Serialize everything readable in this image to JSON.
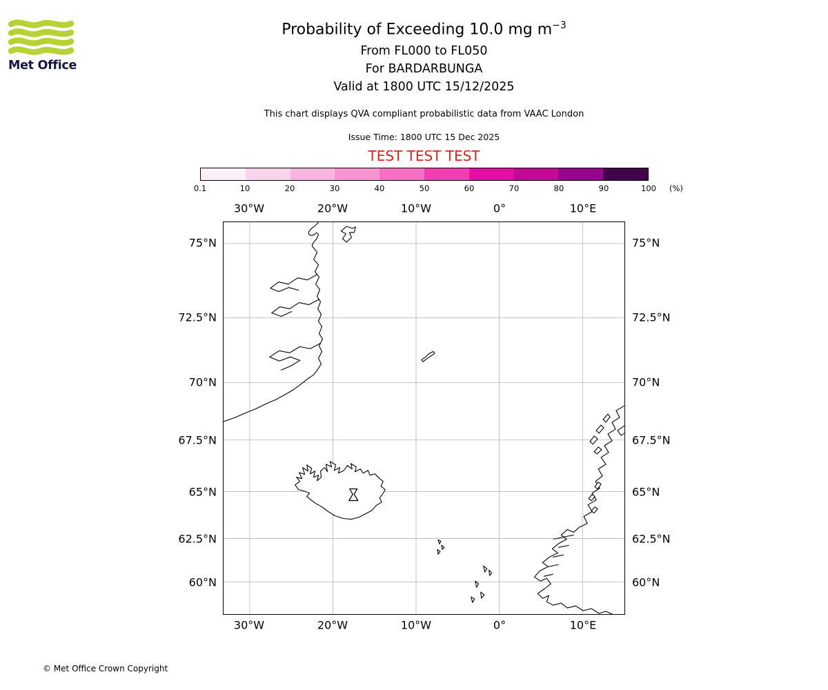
{
  "logo": {
    "brand": "Met Office",
    "green": "#b5d334",
    "text_color": "#151542"
  },
  "header": {
    "title_main": "Probability of Exceeding 10.0 mg m",
    "title_sup": "−3",
    "subtitle1": "From FL000 to FL050",
    "subtitle2": "For BARDARBUNGA",
    "subtitle3": "Valid at 1800 UTC 15/12/2025",
    "disclaimer": "This chart displays QVA compliant probabilistic data from VAAC London",
    "issue_time": "Issue Time: 1800 UTC 15 Dec 2025",
    "test_banner": "TEST TEST TEST",
    "test_color": "#d8231f"
  },
  "colorbar": {
    "unit": "(%)",
    "ticks": [
      "0.1",
      "10",
      "20",
      "30",
      "40",
      "50",
      "60",
      "70",
      "80",
      "90",
      "100"
    ],
    "segments": [
      "#fbf0f7",
      "#f9d3eb",
      "#f8b5df",
      "#f795d2",
      "#f66fc4",
      "#f23eb2",
      "#e40fa2",
      "#c40993",
      "#98058a",
      "#43024c"
    ]
  },
  "map": {
    "lon_ticks": [
      {
        "label": "30°W",
        "lon": -30
      },
      {
        "label": "20°W",
        "lon": -20
      },
      {
        "label": "10°W",
        "lon": -10
      },
      {
        "label": "0°",
        "lon": 0
      },
      {
        "label": "10°E",
        "lon": 10
      }
    ],
    "lat_ticks": [
      {
        "label": "75°N",
        "lat": 75
      },
      {
        "label": "72.5°N",
        "lat": 72.5
      },
      {
        "label": "70°N",
        "lat": 70
      },
      {
        "label": "67.5°N",
        "lat": 67.5
      },
      {
        "label": "65°N",
        "lat": 65
      },
      {
        "label": "62.5°N",
        "lat": 62.5
      },
      {
        "label": "60°N",
        "lat": 60
      }
    ],
    "volcano": {
      "lat": 64.63,
      "lon": -17.53
    }
  },
  "footer": {
    "copyright": "© Met Office Crown Copyright"
  }
}
